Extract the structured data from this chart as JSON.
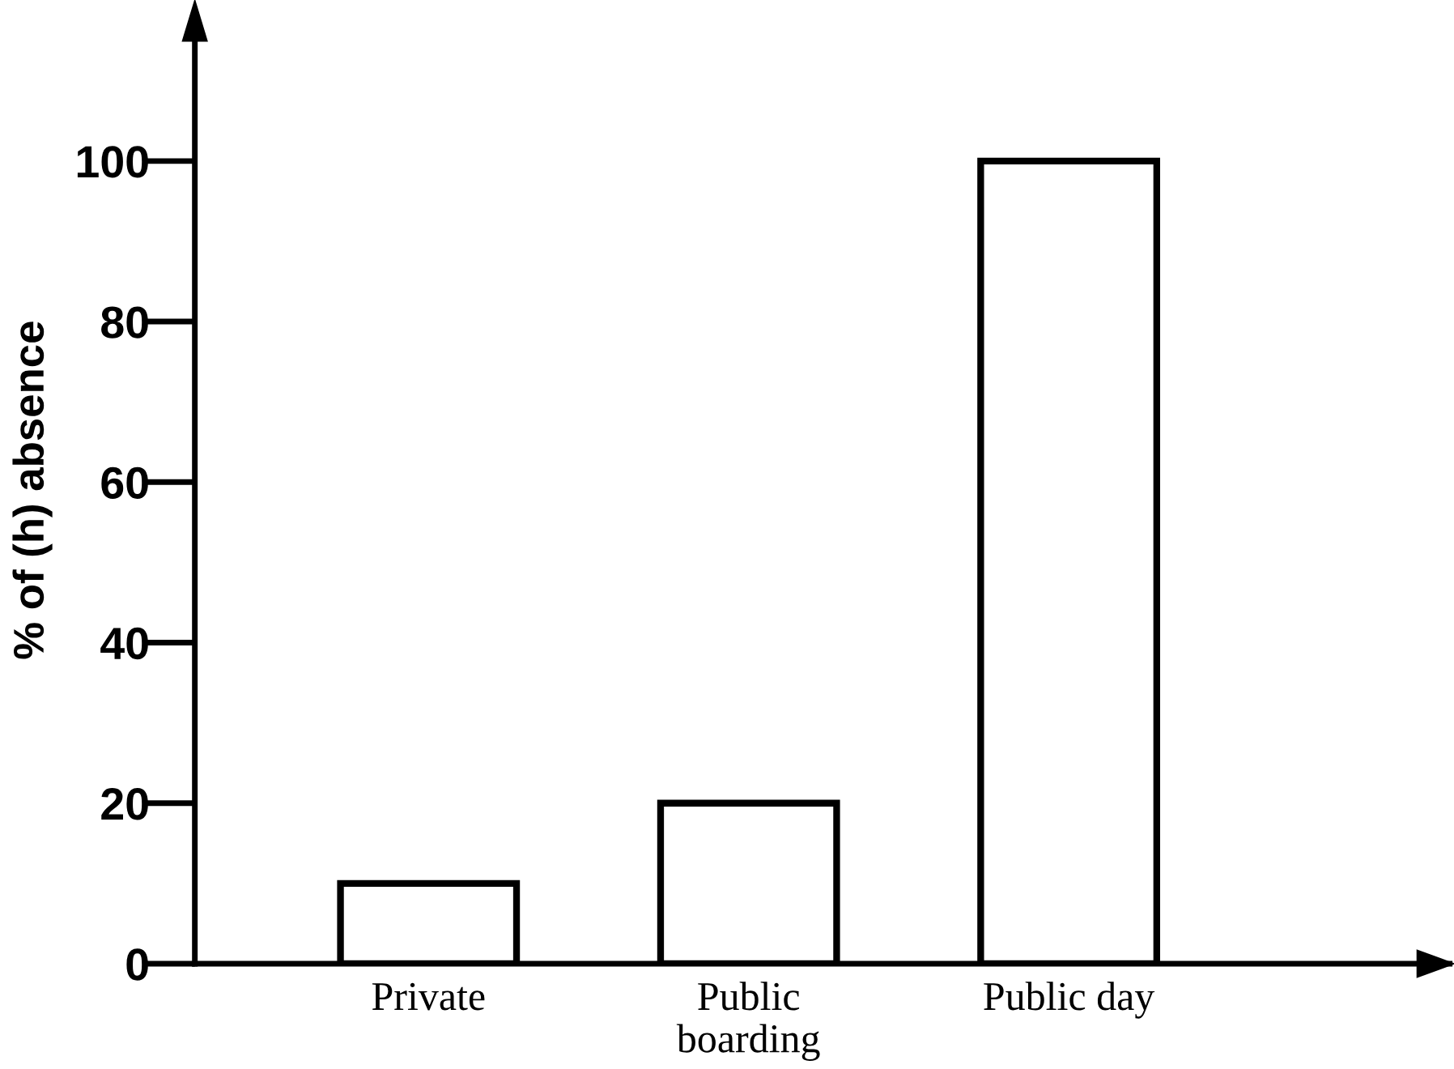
{
  "chart_data": {
    "type": "bar",
    "ylabel": "% of (h) absence",
    "categories": [
      "Private",
      "Public\nboarding",
      "Public day"
    ],
    "values": [
      10,
      20,
      100
    ],
    "color": "#ffffff",
    "ylim": [
      0,
      118
    ],
    "yticks": [
      0,
      20,
      40,
      60,
      80,
      100
    ],
    "grid": false
  }
}
